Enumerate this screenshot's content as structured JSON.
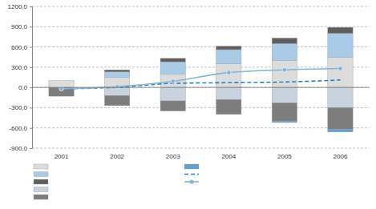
{
  "chart_data": {
    "type": "bar",
    "stacked": true,
    "grid": true,
    "categories": [
      "2001",
      "2002",
      "2003",
      "2004",
      "2005",
      "2006"
    ],
    "ylim": [
      -900,
      1200
    ],
    "yticks": [
      {
        "value": 1200,
        "label": "1200,0"
      },
      {
        "value": 900,
        "label": "900,0"
      },
      {
        "value": 600,
        "label": "600,0"
      },
      {
        "value": 300,
        "label": "300,0"
      },
      {
        "value": 0,
        "label": "0,0"
      },
      {
        "value": -300,
        "label": "-300,0"
      },
      {
        "value": -600,
        "label": "-600,0"
      },
      {
        "value": -900,
        "label": "-900,0"
      }
    ],
    "series": [
      {
        "type": "bar",
        "color": "#dcdcdc",
        "values": [
          100,
          150,
          200,
          350,
          400,
          450
        ]
      },
      {
        "type": "bar",
        "color": "#a9cbe8",
        "values": [
          0,
          80,
          180,
          210,
          250,
          350
        ]
      },
      {
        "type": "bar",
        "color": "#5e5e5e",
        "values": [
          0,
          30,
          50,
          50,
          80,
          90
        ]
      },
      {
        "type": "bar",
        "color": "#c9d3de",
        "values": [
          0,
          -120,
          -200,
          -180,
          -230,
          -300
        ]
      },
      {
        "type": "bar",
        "color": "#7d7d7d",
        "values": [
          -130,
          -150,
          -150,
          -220,
          -270,
          -320
        ]
      },
      {
        "type": "bar",
        "color": "#5f9fd6",
        "values": [
          0,
          0,
          0,
          0,
          -20,
          -40
        ]
      },
      {
        "type": "line",
        "color": "#2f7fc0",
        "line_style": "dashed",
        "values": [
          -20,
          0,
          60,
          70,
          80,
          110
        ]
      },
      {
        "type": "line",
        "color": "#7fb6dc",
        "marker": "circle",
        "values": [
          -20,
          10,
          90,
          220,
          260,
          280
        ]
      }
    ]
  }
}
